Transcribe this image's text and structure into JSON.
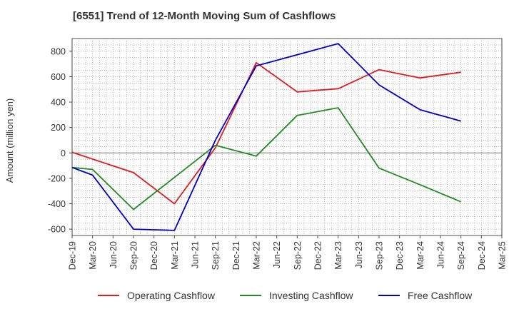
{
  "chart_data": {
    "type": "line",
    "title": "[6551]  Trend of 12-Month Moving Sum of Cashflows",
    "xlabel": "",
    "ylabel": "Amount (million yen)",
    "categories": [
      "Dec-19",
      "Mar-20",
      "Jun-20",
      "Sep-20",
      "Dec-20",
      "Mar-21",
      "Jun-21",
      "Sep-21",
      "Dec-21",
      "Mar-22",
      "Jun-22",
      "Sep-22",
      "Dec-22",
      "Mar-23",
      "Jun-23",
      "Sep-23",
      "Dec-23",
      "Mar-24",
      "Jun-24",
      "Sep-24",
      "Dec-24",
      "Mar-25"
    ],
    "ylim": [
      -650,
      900
    ],
    "yticks": [
      -600,
      -400,
      -200,
      0,
      200,
      400,
      600,
      800
    ],
    "grid": true,
    "legend_position": "bottom",
    "series": [
      {
        "name": "Operating Cashflow",
        "color": "#e31a1c",
        "values": [
          5,
          null,
          null,
          -155,
          null,
          -400,
          null,
          40,
          null,
          710,
          null,
          480,
          null,
          505,
          null,
          655,
          null,
          590,
          null,
          635,
          null,
          null
        ]
      },
      {
        "name": "Investing Cashflow",
        "color": "#228b22",
        "values": [
          -115,
          -130,
          null,
          -445,
          null,
          null,
          null,
          60,
          null,
          -25,
          null,
          295,
          null,
          355,
          null,
          -120,
          null,
          -250,
          null,
          -385,
          null,
          null
        ]
      },
      {
        "name": "Free Cashflow",
        "color": "#0000cc",
        "values": [
          -115,
          -175,
          null,
          -600,
          null,
          -610,
          null,
          100,
          null,
          685,
          null,
          null,
          null,
          860,
          null,
          535,
          null,
          340,
          null,
          250,
          null,
          null
        ]
      }
    ]
  }
}
